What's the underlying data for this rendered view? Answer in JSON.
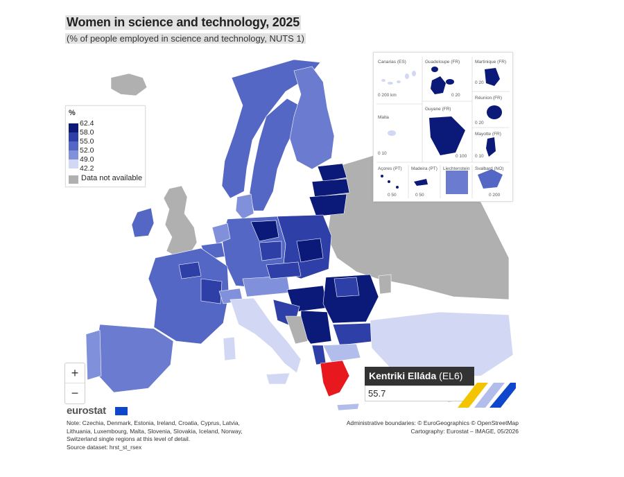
{
  "title": "Women in science and technology, 2025",
  "subtitle": "(% of people employed in science and technology, NUTS 1)",
  "legend": {
    "unit": "%",
    "ticks": [
      "62.4",
      "58.0",
      "55.0",
      "52.0",
      "49.0",
      "42.2"
    ],
    "colors": [
      "#0b1a78",
      "#2e3fa8",
      "#5567c4",
      "#8090da",
      "#b3bdeb",
      "#e2e6f7"
    ],
    "na_label": "Data not available",
    "na_color": "#b0b0b0"
  },
  "insets": {
    "canarias": "Canarias (ES)",
    "canarias_scale": "0      200 km",
    "guadeloupe": "Guadeloupe (FR)",
    "guadeloupe_scale": "0  20",
    "martinique": "Martinique (FR)",
    "martinique_scale": "0  20",
    "reunion": "Réunion (FR)",
    "reunion_scale": "0  20",
    "malta": "Malta",
    "malta_scale": "0  10",
    "guyane": "Guyane (FR)",
    "guyane_scale": "0  100",
    "mayotte": "Mayotte (FR)",
    "mayotte_scale": "0  10",
    "acores": "Açores (PT)",
    "acores_scale": "0  50",
    "madeira": "Madeira (PT)",
    "madeira_scale": "0  50",
    "liechtenstein": "Liechtenstein",
    "svalbard": "Svalbard (NO)",
    "svalbard_scale": "0  200"
  },
  "zoom": {
    "plus": "+",
    "minus": "−"
  },
  "tooltip": {
    "region": "Kentriki Elláda",
    "code": "(EL6)",
    "value": "55.7",
    "highlight_color": "#e8191e"
  },
  "footer": {
    "logo": "eurostat",
    "note": "Note: Czechia, Denmark, Estonia, Ireland, Croatia, Cyprus, Latvia, Lithuania, Luxembourg, Malta, Slovenia, Slovakia, Iceland, Norway, Switzerland single regions at this level of detail.",
    "source": "Source dataset: hrst_st_rsex",
    "boundaries": "Administrative boundaries: © EuroGeographics © OpenStreetMap",
    "cartography": "Cartography: Eurostat – IMAGE, 05/2026"
  }
}
